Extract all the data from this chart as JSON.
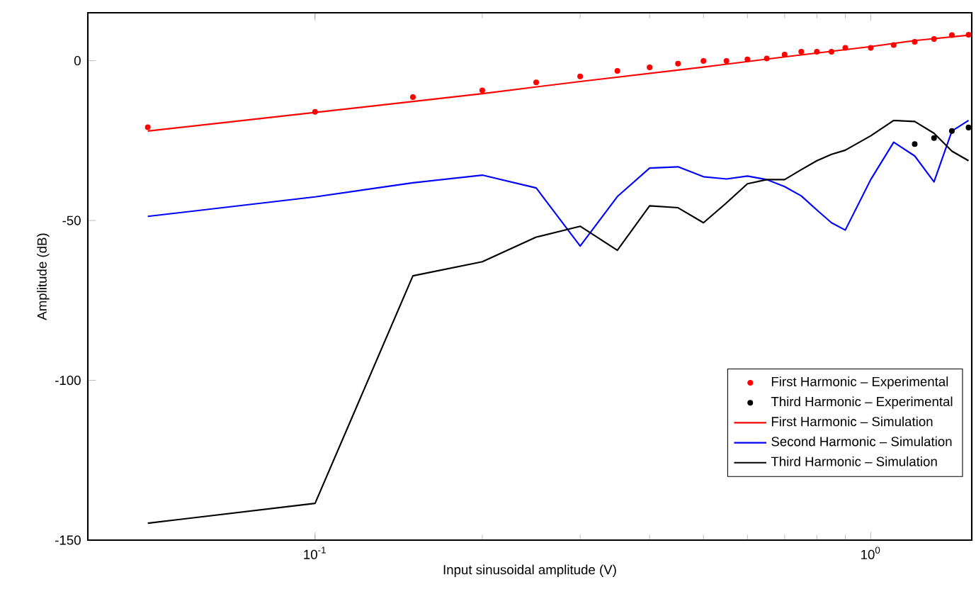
{
  "chart_data": {
    "type": "line",
    "xlabel": "Input sinusoidal amplitude (V)",
    "ylabel": "Amplitude (dB)",
    "log": "x",
    "xlim": [
      0.039,
      1.52
    ],
    "ylim": [
      -150,
      15
    ],
    "xticks": [
      {
        "value": 0.1,
        "label": "10$^{-1}$"
      },
      {
        "value": 1,
        "label": "10$^{0}$"
      }
    ],
    "yticks": [
      -150,
      -100,
      -50,
      0
    ],
    "legend": "bottom right",
    "grid": false,
    "series": [
      {
        "name": "First Harmonic – Experimental",
        "type": "scatter",
        "marker": "circle",
        "color": "#ff0000",
        "x": [
          0.05,
          0.1,
          0.15,
          0.2,
          0.25,
          0.3,
          0.35,
          0.4,
          0.45,
          0.5,
          0.55,
          0.6,
          0.65,
          0.7,
          0.75,
          0.8,
          0.85,
          0.9,
          1.0,
          1.1,
          1.2,
          1.3,
          1.4,
          1.5
        ],
        "values": [
          -20.8,
          -16,
          -11.4,
          -9.3,
          -6.8,
          -4.9,
          -3.2,
          -2.1,
          -0.9,
          -0.1,
          -0.1,
          0.4,
          0.7,
          1.9,
          2.8,
          2.8,
          2.8,
          4.0,
          4.0,
          4.9,
          5.9,
          6.8,
          8.0,
          8.1
        ]
      },
      {
        "name": "Third Harmonic – Experimental",
        "type": "scatter",
        "marker": "circle",
        "color": "#000000",
        "x": [
          1.2,
          1.3,
          1.4,
          1.5
        ],
        "values": [
          -26.1,
          -24.2,
          -22,
          -20.9
        ]
      },
      {
        "name": "First Harmonic – Simulation",
        "color": "#ff0000",
        "x": [
          0.05,
          0.1,
          0.2,
          0.3,
          0.5,
          0.7,
          1.0,
          1.2,
          1.5
        ],
        "values": [
          -22,
          -16.2,
          -10.3,
          -6.5,
          -2,
          1.2,
          4.4,
          6.3,
          8
        ]
      },
      {
        "name": "Second Harmonic – Simulation",
        "color": "#0000ff",
        "x": [
          0.05,
          0.1,
          0.15,
          0.2,
          0.25,
          0.3,
          0.35,
          0.4,
          0.45,
          0.5,
          0.55,
          0.6,
          0.65,
          0.7,
          0.75,
          0.8,
          0.85,
          0.9,
          1.0,
          1.1,
          1.2,
          1.3,
          1.4,
          1.5
        ],
        "values": [
          -48.7,
          -42.6,
          -38.2,
          -35.8,
          -39.8,
          -58,
          -42.5,
          -33.6,
          -33.2,
          -36.3,
          -37,
          -36.1,
          -37.2,
          -39.4,
          -42.3,
          -46.7,
          -50.7,
          -53,
          -37.2,
          -25.5,
          -29.8,
          -37.9,
          -22,
          -18.7
        ]
      },
      {
        "name": "Third Harmonic – Simulation",
        "color": "#000000",
        "x": [
          0.05,
          0.1,
          0.15,
          0.2,
          0.25,
          0.3,
          0.35,
          0.4,
          0.45,
          0.5,
          0.55,
          0.6,
          0.65,
          0.7,
          0.75,
          0.8,
          0.85,
          0.9,
          1.0,
          1.1,
          1.2,
          1.3,
          1.4,
          1.5
        ],
        "values": [
          -144.7,
          -138.5,
          -67.3,
          -62.9,
          -55.2,
          -51.8,
          -59.3,
          -45.4,
          -46,
          -50.7,
          -44.5,
          -38.5,
          -37.2,
          -37.2,
          -34.1,
          -31.3,
          -29.3,
          -28,
          -23.5,
          -18.7,
          -19,
          -22.7,
          -28.3,
          -31.3
        ]
      }
    ]
  }
}
